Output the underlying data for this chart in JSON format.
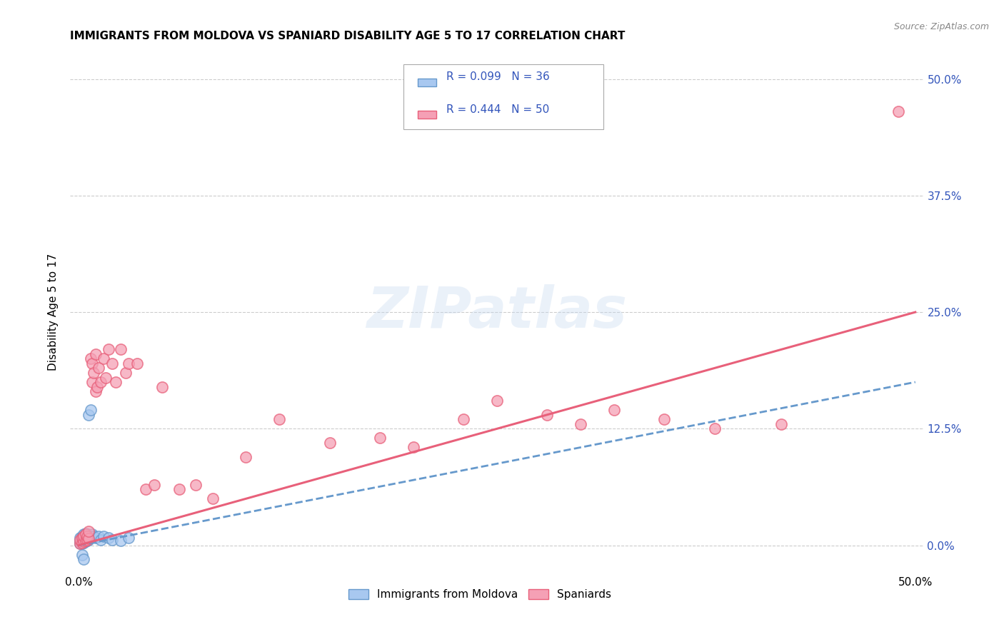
{
  "title": "IMMIGRANTS FROM MOLDOVA VS SPANIARD DISABILITY AGE 5 TO 17 CORRELATION CHART",
  "source": "Source: ZipAtlas.com",
  "ylabel": "Disability Age 5 to 17",
  "xlim": [
    0.0,
    0.5
  ],
  "ylim": [
    -0.03,
    0.53
  ],
  "ytick_values": [
    0.0,
    0.125,
    0.25,
    0.375,
    0.5
  ],
  "color_moldova": "#a8c8f0",
  "color_spain": "#f5a0b5",
  "color_line_moldova": "#6699cc",
  "color_line_spain": "#e8607a",
  "color_text": "#3355bb",
  "moldova_x": [
    0.001,
    0.001,
    0.001,
    0.002,
    0.002,
    0.002,
    0.002,
    0.003,
    0.003,
    0.003,
    0.003,
    0.004,
    0.004,
    0.004,
    0.004,
    0.005,
    0.005,
    0.005,
    0.006,
    0.006,
    0.006,
    0.007,
    0.007,
    0.008,
    0.008,
    0.009,
    0.01,
    0.012,
    0.013,
    0.015,
    0.018,
    0.02,
    0.025,
    0.03,
    0.002,
    0.003
  ],
  "moldova_y": [
    0.002,
    0.005,
    0.008,
    0.002,
    0.004,
    0.006,
    0.01,
    0.003,
    0.005,
    0.007,
    0.012,
    0.004,
    0.007,
    0.01,
    0.013,
    0.005,
    0.008,
    0.012,
    0.006,
    0.01,
    0.14,
    0.008,
    0.145,
    0.01,
    0.012,
    0.01,
    0.008,
    0.01,
    0.006,
    0.01,
    0.008,
    0.006,
    0.005,
    0.008,
    -0.01,
    -0.015
  ],
  "spain_x": [
    0.001,
    0.001,
    0.002,
    0.002,
    0.003,
    0.003,
    0.004,
    0.004,
    0.005,
    0.005,
    0.006,
    0.006,
    0.007,
    0.008,
    0.008,
    0.009,
    0.01,
    0.01,
    0.011,
    0.012,
    0.013,
    0.015,
    0.016,
    0.018,
    0.02,
    0.022,
    0.025,
    0.028,
    0.03,
    0.035,
    0.04,
    0.045,
    0.05,
    0.06,
    0.07,
    0.08,
    0.1,
    0.12,
    0.15,
    0.18,
    0.2,
    0.23,
    0.25,
    0.28,
    0.3,
    0.32,
    0.35,
    0.38,
    0.42,
    0.49
  ],
  "spain_y": [
    0.002,
    0.006,
    0.003,
    0.008,
    0.004,
    0.01,
    0.005,
    0.012,
    0.006,
    0.01,
    0.007,
    0.015,
    0.2,
    0.175,
    0.195,
    0.185,
    0.205,
    0.165,
    0.17,
    0.19,
    0.175,
    0.2,
    0.18,
    0.21,
    0.195,
    0.175,
    0.21,
    0.185,
    0.195,
    0.195,
    0.06,
    0.065,
    0.17,
    0.06,
    0.065,
    0.05,
    0.095,
    0.135,
    0.11,
    0.115,
    0.105,
    0.135,
    0.155,
    0.14,
    0.13,
    0.145,
    0.135,
    0.125,
    0.13,
    0.465
  ],
  "spain_line_x0": 0.0,
  "spain_line_y0": 0.0,
  "spain_line_x1": 0.5,
  "spain_line_y1": 0.25,
  "moldova_line_x0": 0.0,
  "moldova_line_y0": 0.0,
  "moldova_line_x1": 0.5,
  "moldova_line_y1": 0.175
}
